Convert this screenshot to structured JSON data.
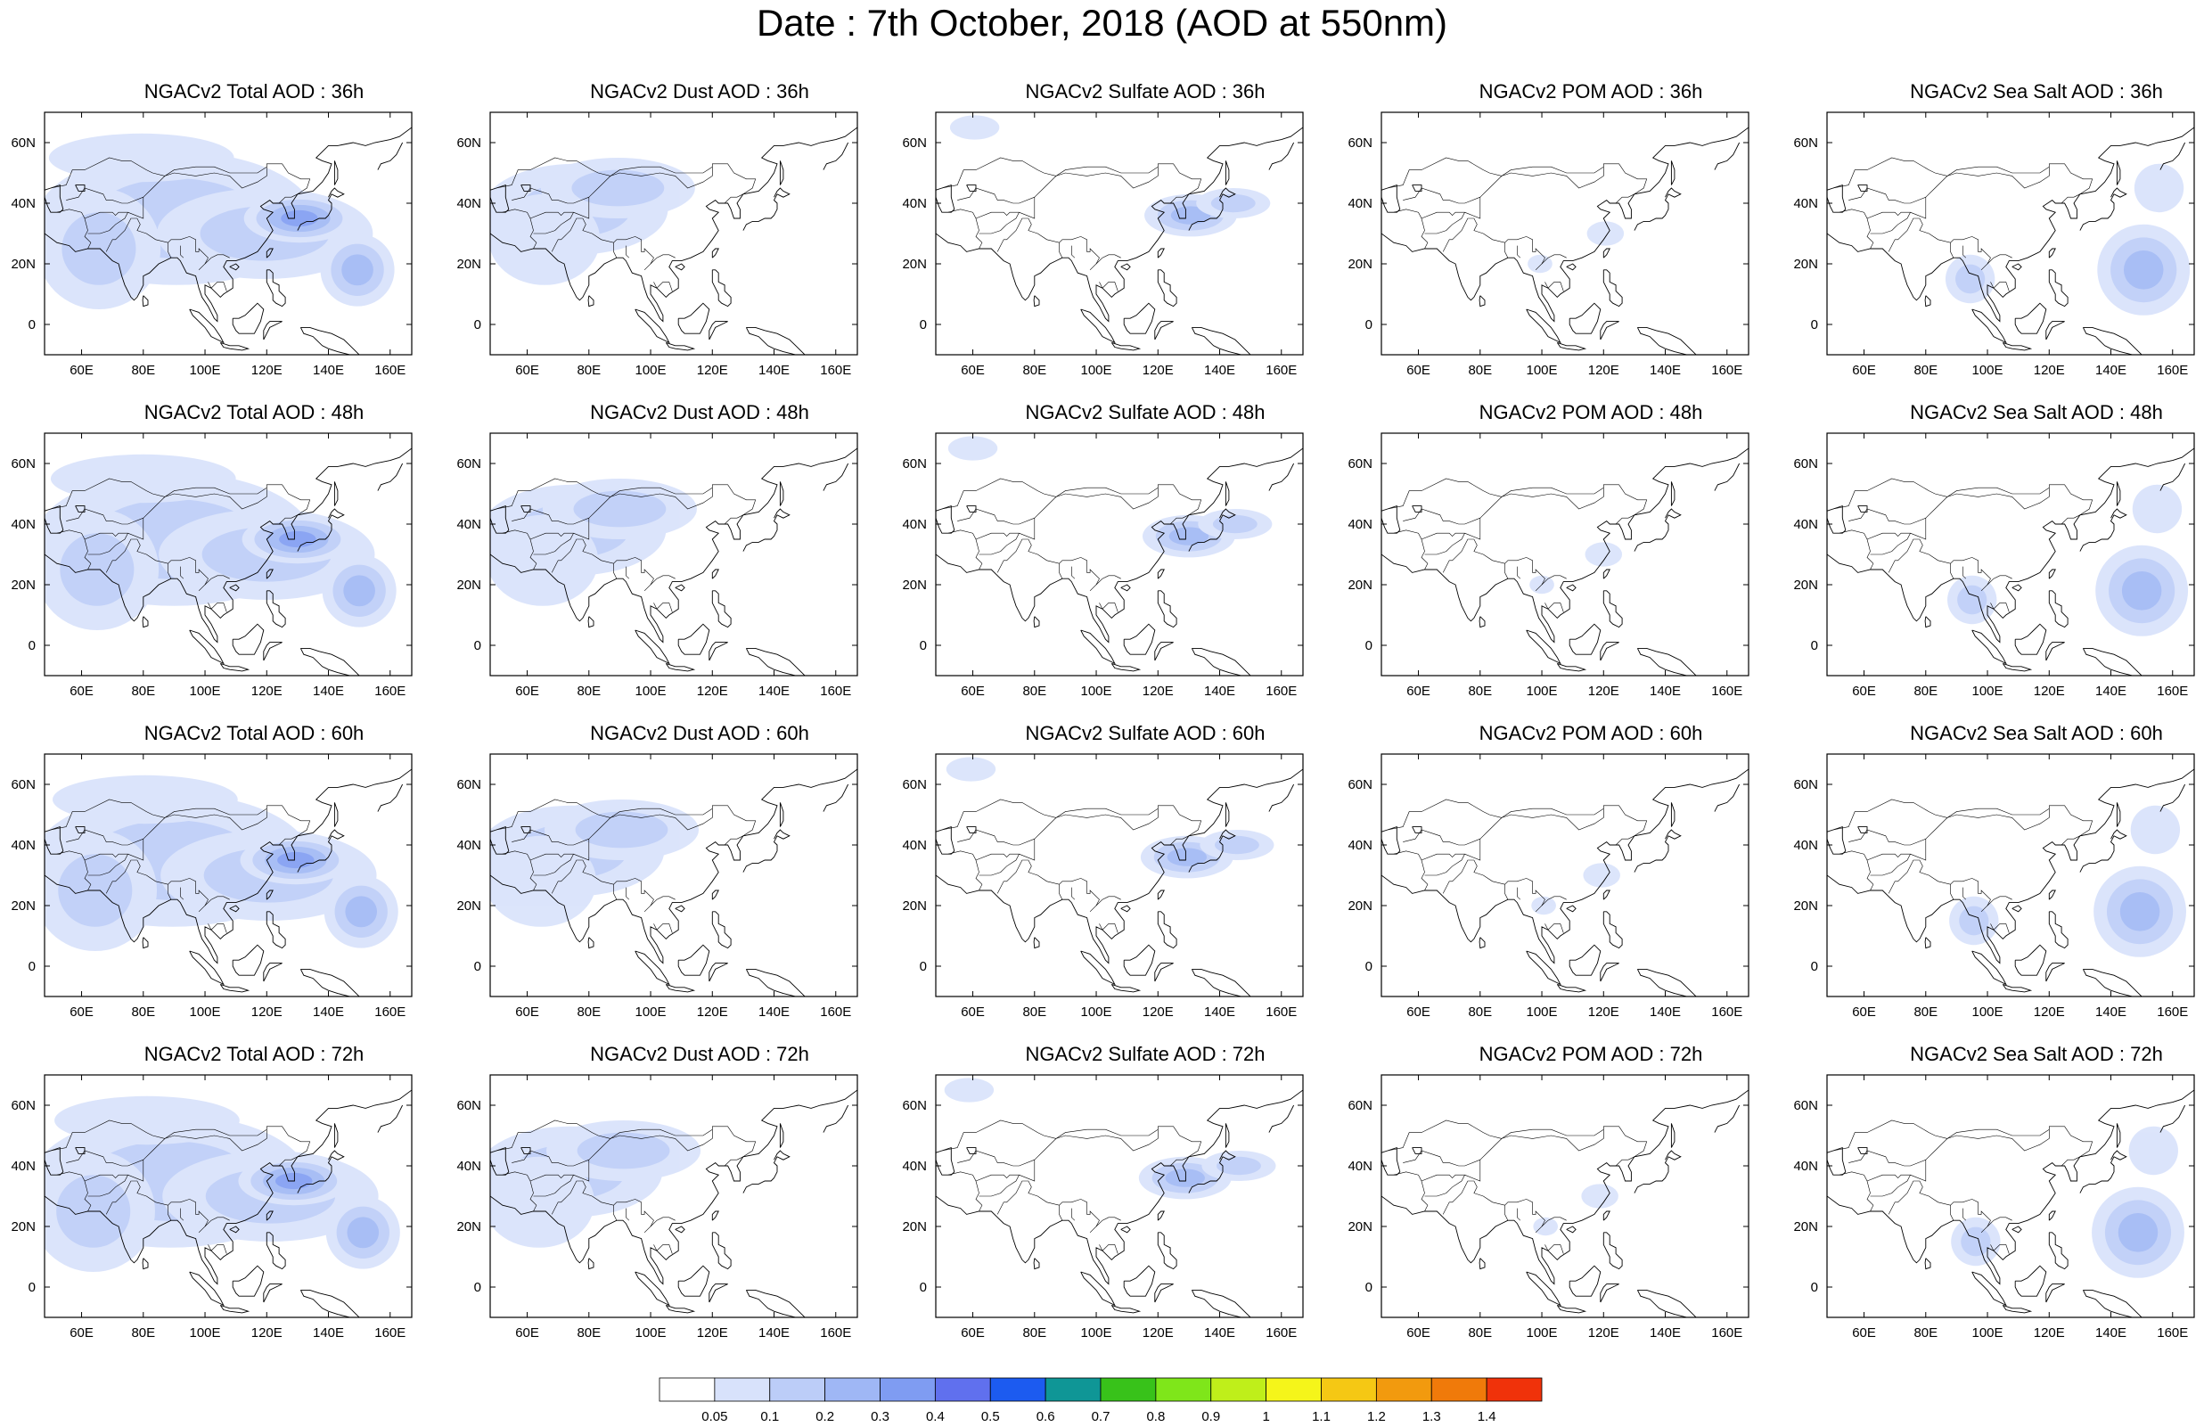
{
  "title": "Date : 7th October, 2018 (AOD at 550nm)",
  "colors": {
    "scale": [
      "#ffffff",
      "#d8e2fb",
      "#bccdf8",
      "#9fb7f5",
      "#7f9cf2",
      "#6070ee",
      "#1c5bf0",
      "#0f9696",
      "#38c21a",
      "#7fe61a",
      "#bfef1a",
      "#f5f51a",
      "#f5c814",
      "#f29a0e",
      "#f07a0a",
      "#f0320a"
    ],
    "coast": "#000000"
  },
  "colorbar": {
    "labels": [
      "0.05",
      "0.1",
      "0.2",
      "0.3",
      "0.4",
      "0.5",
      "0.6",
      "0.7",
      "0.8",
      "0.9",
      "1",
      "1.1",
      "1.2",
      "1.3",
      "1.4"
    ]
  },
  "map_axes": {
    "lon_ticks": [
      "60E",
      "80E",
      "100E",
      "120E",
      "140E",
      "160E"
    ],
    "lat_ticks": [
      "60N",
      "40N",
      "20N",
      "0"
    ],
    "lon_values": [
      60,
      80,
      100,
      120,
      140,
      160
    ],
    "lat_values": [
      60,
      40,
      20,
      0
    ],
    "lon_range": [
      48,
      167
    ],
    "lat_range": [
      -10,
      70
    ]
  },
  "panels": [
    {
      "title": "NGACv2 Total AOD : 36h",
      "field": "total",
      "hour": 36
    },
    {
      "title": "NGACv2 Dust AOD : 36h",
      "field": "dust",
      "hour": 36
    },
    {
      "title": "NGACv2 Sulfate AOD : 36h",
      "field": "sulfate",
      "hour": 36
    },
    {
      "title": "NGACv2 POM AOD : 36h",
      "field": "pom",
      "hour": 36
    },
    {
      "title": "NGACv2 Sea Salt AOD : 36h",
      "field": "seasalt",
      "hour": 36
    },
    {
      "title": "NGACv2 Total AOD : 48h",
      "field": "total",
      "hour": 48
    },
    {
      "title": "NGACv2 Dust AOD : 48h",
      "field": "dust",
      "hour": 48
    },
    {
      "title": "NGACv2 Sulfate AOD : 48h",
      "field": "sulfate",
      "hour": 48
    },
    {
      "title": "NGACv2 POM AOD : 48h",
      "field": "pom",
      "hour": 48
    },
    {
      "title": "NGACv2 Sea Salt AOD : 48h",
      "field": "seasalt",
      "hour": 48
    },
    {
      "title": "NGACv2 Total AOD : 60h",
      "field": "total",
      "hour": 60
    },
    {
      "title": "NGACv2 Dust AOD : 60h",
      "field": "dust",
      "hour": 60
    },
    {
      "title": "NGACv2 Sulfate AOD : 60h",
      "field": "sulfate",
      "hour": 60
    },
    {
      "title": "NGACv2 POM AOD : 60h",
      "field": "pom",
      "hour": 60
    },
    {
      "title": "NGACv2 Sea Salt AOD : 60h",
      "field": "seasalt",
      "hour": 60
    },
    {
      "title": "NGACv2 Total AOD : 72h",
      "field": "total",
      "hour": 72
    },
    {
      "title": "NGACv2 Dust AOD : 72h",
      "field": "dust",
      "hour": 72
    },
    {
      "title": "NGACv2 Sulfate AOD : 72h",
      "field": "sulfate",
      "hour": 72
    },
    {
      "title": "NGACv2 POM AOD : 72h",
      "field": "pom",
      "hour": 72
    },
    {
      "title": "NGACv2 Sea Salt  AOD : 72h",
      "field": "seasalt",
      "hour": 72
    }
  ]
}
